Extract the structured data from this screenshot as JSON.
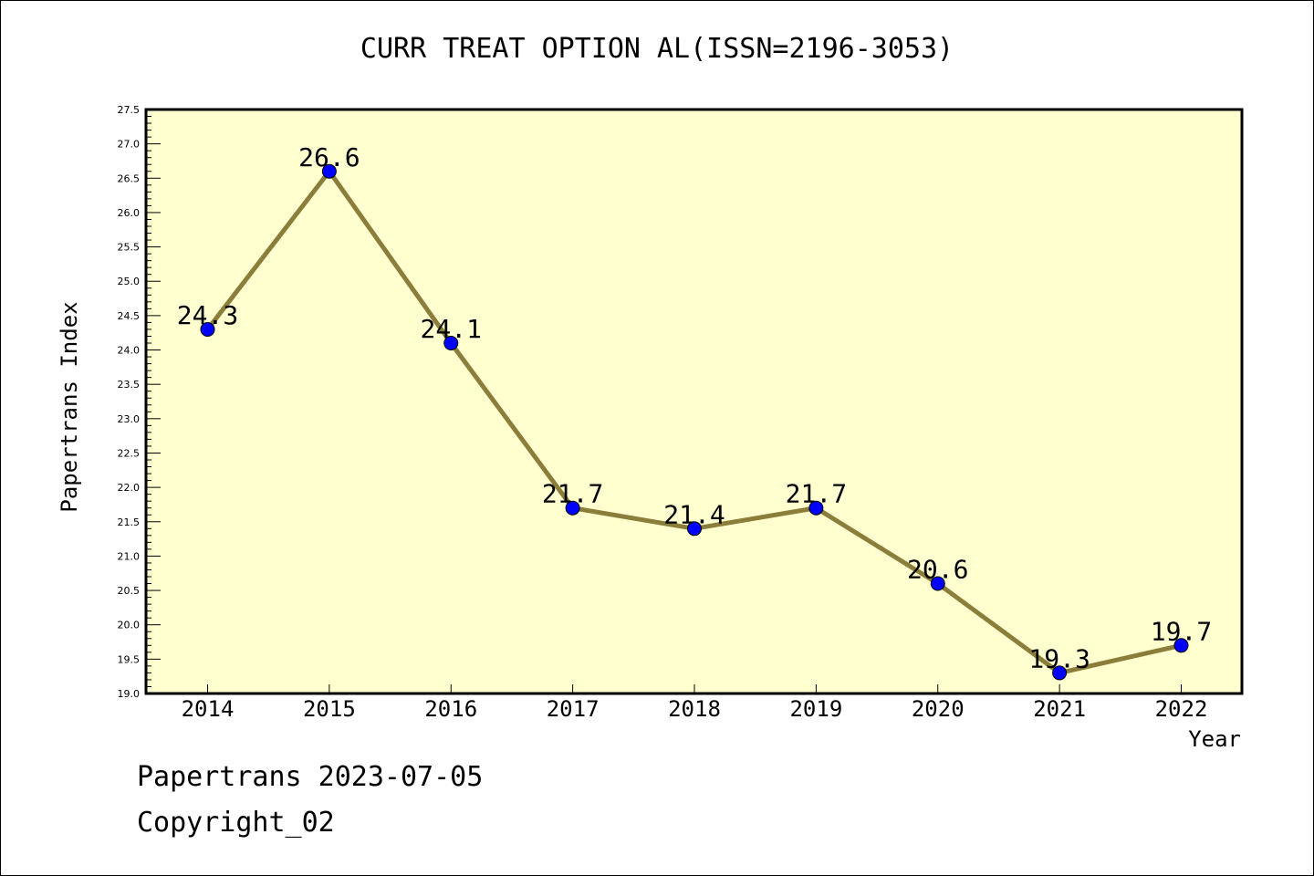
{
  "chart_data": {
    "type": "line",
    "title": "CURR TREAT OPTION AL(ISSN=2196-3053)",
    "xlabel": "Year",
    "ylabel": "Papertrans Index",
    "categories": [
      "2014",
      "2015",
      "2016",
      "2017",
      "2018",
      "2019",
      "2020",
      "2021",
      "2022"
    ],
    "series": [
      {
        "values": [
          24.3,
          26.6,
          24.1,
          21.7,
          21.4,
          21.7,
          20.6,
          19.3,
          19.7
        ],
        "labels": [
          "24.3",
          "26.6",
          "24.1",
          "21.7",
          "21.4",
          "21.7",
          "20.6",
          "19.3",
          "19.7"
        ]
      }
    ],
    "ylim": [
      19.0,
      27.5
    ],
    "yticks": [
      "19.0",
      "19.5",
      "20.0",
      "20.5",
      "21.0",
      "21.5",
      "22.0",
      "22.5",
      "23.0",
      "23.5",
      "24.0",
      "24.5",
      "25.0",
      "25.5",
      "26.0",
      "26.5",
      "27.0",
      "27.5"
    ],
    "grid": false,
    "colors": {
      "plot_background": "#ffffd0",
      "line": "#8b7d3a",
      "marker": "#0000ff"
    }
  },
  "footer": {
    "line1": "Papertrans 2023-07-05",
    "line2": "Copyright_02"
  }
}
